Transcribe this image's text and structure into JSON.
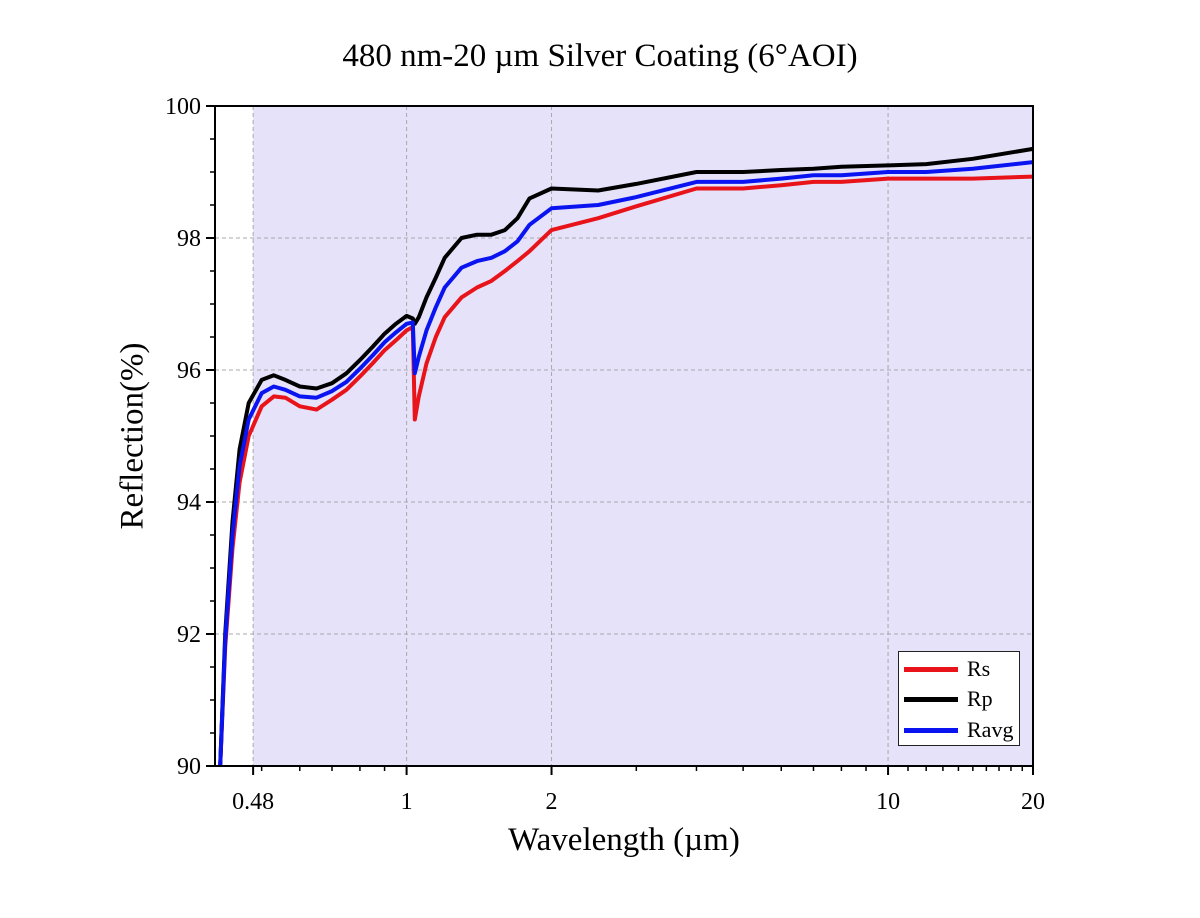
{
  "chart_data": {
    "type": "line",
    "title": "480 nm-20 µm Silver Coating (6°AOI)",
    "xlabel": "Wavelength (µm)",
    "ylabel": "Reflection(%)",
    "x_scale": "log",
    "xlim": [
      0.4,
      20
    ],
    "ylim": [
      90,
      100
    ],
    "x_ticks": [
      0.48,
      1,
      2,
      10,
      20
    ],
    "x_tick_labels": [
      "0.48",
      "1",
      "2",
      "10",
      "20"
    ],
    "y_ticks": [
      90,
      92,
      94,
      96,
      98,
      100
    ],
    "y_tick_labels": [
      "90",
      "92",
      "94",
      "96",
      "98",
      "100"
    ],
    "grid": true,
    "shaded_region": {
      "from": 0.48,
      "to": 20,
      "color": "#e6e2fa"
    },
    "legend_position": "bottom-right",
    "series": [
      {
        "name": "Rs",
        "color": "#e8141a",
        "x": [
          0.41,
          0.42,
          0.435,
          0.45,
          0.47,
          0.5,
          0.53,
          0.56,
          0.6,
          0.65,
          0.7,
          0.75,
          0.8,
          0.85,
          0.9,
          0.95,
          1.0,
          1.03,
          1.04,
          1.06,
          1.1,
          1.15,
          1.2,
          1.3,
          1.4,
          1.5,
          1.6,
          1.7,
          1.8,
          2.0,
          2.5,
          3.0,
          4.0,
          5.0,
          6.0,
          7.0,
          8.0,
          10.0,
          12.0,
          15.0,
          20.0
        ],
        "y": [
          90.0,
          91.8,
          93.3,
          94.3,
          95.0,
          95.45,
          95.6,
          95.58,
          95.45,
          95.4,
          95.55,
          95.7,
          95.9,
          96.1,
          96.3,
          96.45,
          96.6,
          96.65,
          95.25,
          95.6,
          96.1,
          96.5,
          96.8,
          97.1,
          97.25,
          97.35,
          97.5,
          97.65,
          97.8,
          98.12,
          98.3,
          98.48,
          98.75,
          98.75,
          98.8,
          98.85,
          98.85,
          98.9,
          98.9,
          98.9,
          98.93
        ]
      },
      {
        "name": "Rp",
        "color": "#000000",
        "x": [
          0.41,
          0.42,
          0.435,
          0.45,
          0.47,
          0.5,
          0.53,
          0.56,
          0.6,
          0.65,
          0.7,
          0.75,
          0.8,
          0.85,
          0.9,
          0.95,
          1.0,
          1.03,
          1.04,
          1.06,
          1.1,
          1.15,
          1.2,
          1.3,
          1.4,
          1.5,
          1.6,
          1.7,
          1.8,
          2.0,
          2.5,
          3.0,
          4.0,
          5.0,
          6.0,
          7.0,
          8.0,
          10.0,
          12.0,
          15.0,
          20.0
        ],
        "y": [
          90.0,
          92.0,
          93.7,
          94.8,
          95.5,
          95.85,
          95.92,
          95.85,
          95.75,
          95.72,
          95.8,
          95.95,
          96.15,
          96.35,
          96.55,
          96.7,
          96.82,
          96.78,
          96.7,
          96.8,
          97.1,
          97.4,
          97.7,
          98.0,
          98.05,
          98.05,
          98.12,
          98.3,
          98.6,
          98.75,
          98.72,
          98.82,
          99.0,
          99.0,
          99.03,
          99.05,
          99.08,
          99.1,
          99.12,
          99.2,
          99.35
        ]
      },
      {
        "name": "Ravg",
        "color": "#0a14f0",
        "x": [
          0.41,
          0.42,
          0.435,
          0.45,
          0.47,
          0.5,
          0.53,
          0.56,
          0.6,
          0.65,
          0.7,
          0.75,
          0.8,
          0.85,
          0.9,
          0.95,
          1.0,
          1.03,
          1.04,
          1.06,
          1.1,
          1.15,
          1.2,
          1.3,
          1.4,
          1.5,
          1.6,
          1.7,
          1.8,
          2.0,
          2.5,
          3.0,
          4.0,
          5.0,
          6.0,
          7.0,
          8.0,
          10.0,
          12.0,
          15.0,
          20.0
        ],
        "y": [
          90.0,
          91.9,
          93.5,
          94.55,
          95.25,
          95.65,
          95.75,
          95.7,
          95.6,
          95.58,
          95.68,
          95.82,
          96.02,
          96.22,
          96.42,
          96.57,
          96.7,
          96.72,
          95.95,
          96.2,
          96.6,
          96.95,
          97.25,
          97.55,
          97.65,
          97.7,
          97.8,
          97.95,
          98.2,
          98.45,
          98.5,
          98.62,
          98.85,
          98.85,
          98.9,
          98.95,
          98.95,
          99.0,
          99.0,
          99.05,
          99.15
        ]
      }
    ]
  }
}
